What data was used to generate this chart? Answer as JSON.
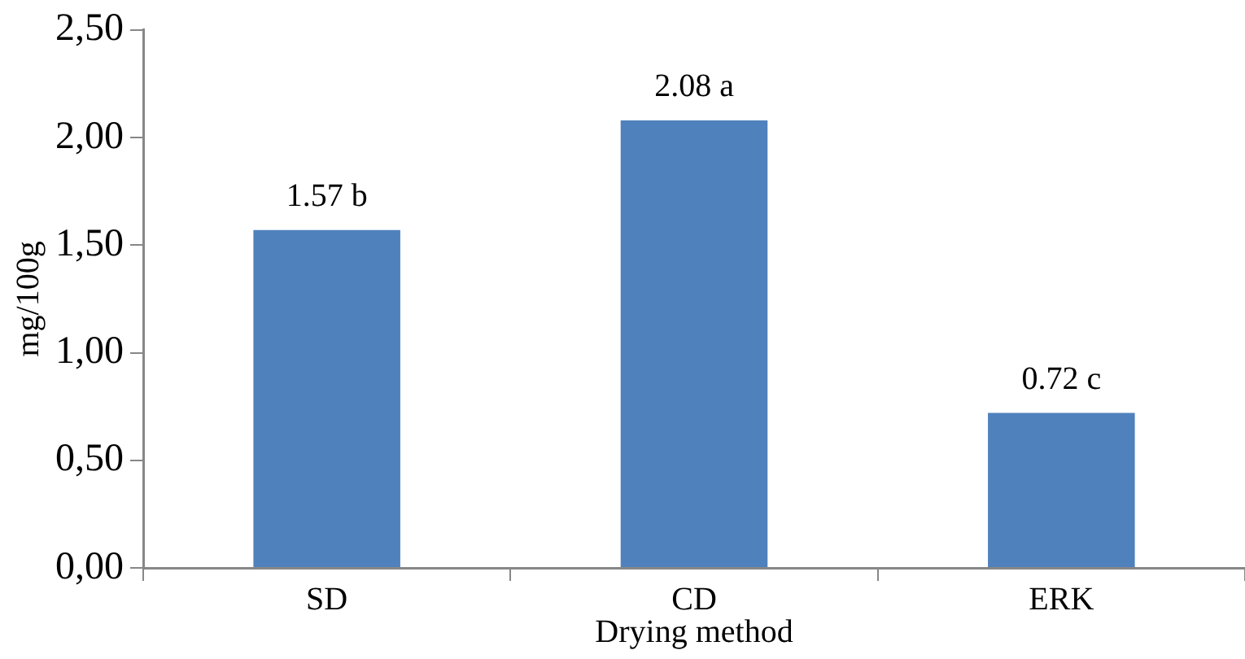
{
  "chart_data": {
    "type": "bar",
    "xlabel": "Drying method",
    "ylabel": "mg/100g",
    "categories": [
      "SD",
      "CD",
      "ERK"
    ],
    "values": [
      1.57,
      2.08,
      0.72
    ],
    "value_labels": [
      "1.57 b",
      "2.08 a",
      "0.72 c"
    ],
    "color": "#4f81bd",
    "ylim": [
      0,
      2.5
    ],
    "yticks": [
      {
        "value": 0,
        "label": "0,00"
      },
      {
        "value": 0.5,
        "label": "0,50"
      },
      {
        "value": 1,
        "label": "1,00"
      },
      {
        "value": 1.5,
        "label": "1,50"
      },
      {
        "value": 2,
        "label": "2,00"
      },
      {
        "value": 2.5,
        "label": "2,50"
      }
    ],
    "grid": false,
    "legend": false
  }
}
